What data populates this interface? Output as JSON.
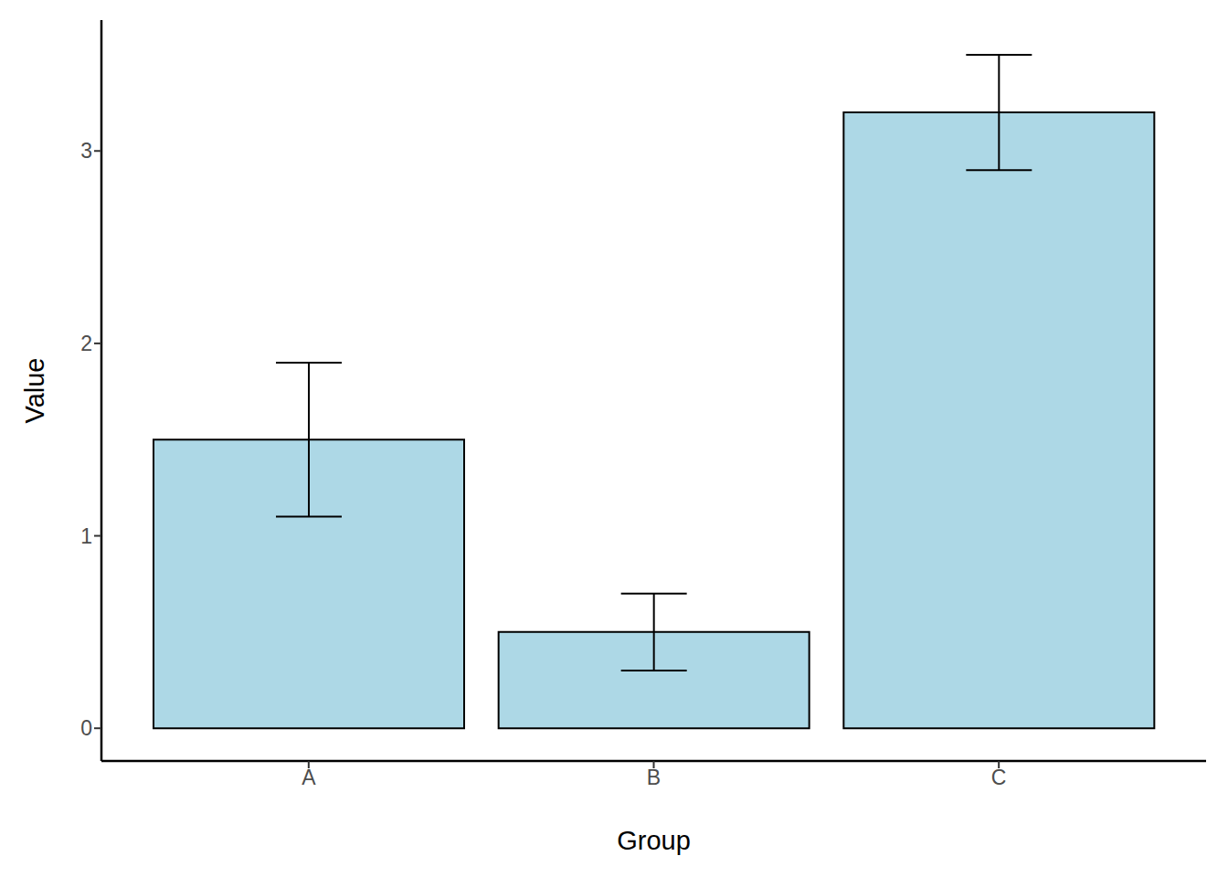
{
  "chart_data": {
    "type": "bar",
    "x_label": "Group",
    "y_label": "Value",
    "categories": [
      "A",
      "B",
      "C"
    ],
    "values": [
      1.5,
      0.5,
      3.2
    ],
    "errors": [
      0.4,
      0.2,
      0.3
    ],
    "color": "#add8e6",
    "ylim": [
      -0.17,
      3.68
    ],
    "yticks": [
      0,
      1,
      2,
      3
    ],
    "grid": false
  }
}
